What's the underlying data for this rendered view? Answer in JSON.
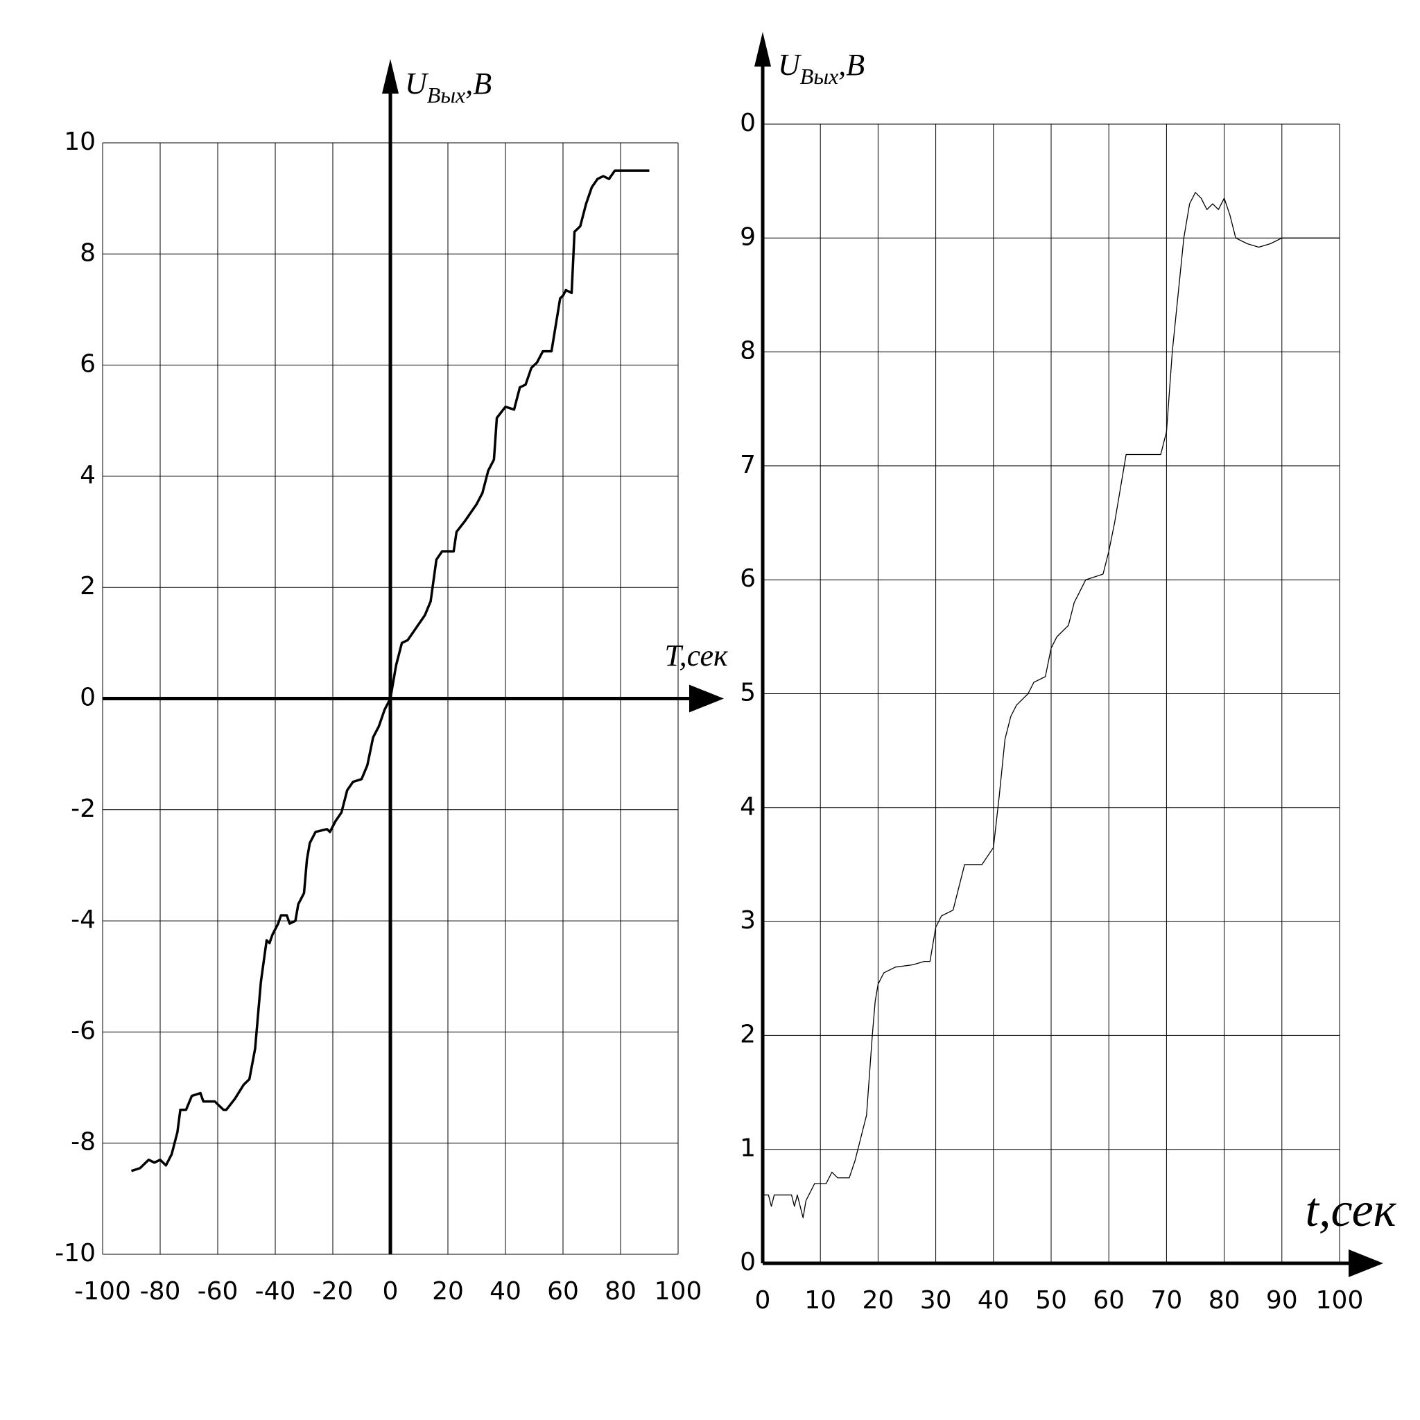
{
  "chart_data": [
    {
      "type": "line",
      "xlabel": "T,сек",
      "ylabel": [
        "U",
        "Вых",
        ",В"
      ],
      "xlim": [
        -100,
        100
      ],
      "ylim": [
        -10,
        10
      ],
      "xticks": [
        -100,
        -80,
        -60,
        -40,
        -20,
        0,
        20,
        40,
        60,
        80,
        100
      ],
      "yticks": [
        -10,
        -8,
        -6,
        -4,
        -2,
        0,
        2,
        4,
        6,
        8,
        10
      ],
      "grid": true,
      "series": [
        {
          "color": "#000000",
          "x": [
            -90,
            -87,
            -84,
            -82,
            -80,
            -78,
            -76,
            -74,
            -73,
            -71,
            -69,
            -66,
            -65,
            -61,
            -58,
            -57,
            -54,
            -51,
            -49,
            -47,
            -45,
            -43,
            -42,
            -41,
            -39,
            -38,
            -36,
            -35,
            -33,
            -32,
            -30,
            -29,
            -28,
            -26,
            -22,
            -21,
            -19,
            -17,
            -15,
            -13,
            -10,
            -8,
            -6,
            -4,
            -2,
            0,
            2,
            4,
            6,
            8,
            12,
            14,
            16,
            18,
            22,
            23,
            26,
            30,
            32,
            34,
            36,
            37,
            40,
            43,
            45,
            47,
            49,
            51,
            53,
            56,
            59,
            60,
            61,
            63,
            64,
            66,
            68,
            70,
            72,
            74,
            76,
            78,
            82,
            90
          ],
          "values": [
            -8.5,
            -8.45,
            -8.3,
            -8.35,
            -8.3,
            -8.4,
            -8.2,
            -7.8,
            -7.4,
            -7.4,
            -7.15,
            -7.1,
            -7.25,
            -7.25,
            -7.4,
            -7.4,
            -7.2,
            -6.95,
            -6.85,
            -6.3,
            -5.1,
            -4.35,
            -4.4,
            -4.25,
            -4.05,
            -3.9,
            -3.9,
            -4.05,
            -4.0,
            -3.7,
            -3.5,
            -2.9,
            -2.6,
            -2.4,
            -2.35,
            -2.4,
            -2.2,
            -2.05,
            -1.65,
            -1.5,
            -1.45,
            -1.2,
            -0.7,
            -0.5,
            -0.2,
            0,
            0.6,
            1.0,
            1.05,
            1.2,
            1.5,
            1.75,
            2.5,
            2.65,
            2.65,
            3.0,
            3.2,
            3.5,
            3.7,
            4.1,
            4.3,
            5.05,
            5.25,
            5.2,
            5.6,
            5.65,
            5.95,
            6.05,
            6.25,
            6.25,
            7.2,
            7.25,
            7.35,
            7.3,
            8.4,
            8.5,
            8.9,
            9.2,
            9.35,
            9.4,
            9.35,
            9.5,
            9.5,
            9.5
          ]
        }
      ]
    },
    {
      "type": "line",
      "xlabel": "t,сек",
      "ylabel": [
        "U",
        "Вых",
        ",В"
      ],
      "xlim": [
        0,
        100
      ],
      "ylim": [
        0,
        10
      ],
      "xticks": [
        0,
        10,
        20,
        30,
        40,
        50,
        60,
        70,
        80,
        90,
        100
      ],
      "yticks": [
        0,
        1,
        2,
        3,
        4,
        5,
        6,
        7,
        8,
        9,
        {
          "value": 10,
          "label": "0"
        }
      ],
      "grid": true,
      "series": [
        {
          "color": "#000000",
          "x": [
            0,
            1,
            1.5,
            2,
            5,
            5.5,
            6,
            7,
            7.5,
            8,
            9,
            11,
            12,
            13,
            15,
            16,
            17,
            18,
            19,
            19.5,
            20,
            21,
            23,
            26,
            28,
            29,
            30,
            31,
            33,
            34,
            35,
            38,
            40,
            41,
            42,
            43,
            44,
            46,
            47,
            49,
            50,
            51,
            53,
            54,
            56,
            59,
            60,
            61,
            62,
            63,
            65,
            67,
            69,
            70,
            71,
            72,
            73,
            74,
            75,
            76,
            77,
            78,
            79,
            80,
            81,
            82,
            84,
            86,
            88,
            90,
            95,
            100
          ],
          "values": [
            0.6,
            0.6,
            0.5,
            0.6,
            0.6,
            0.5,
            0.6,
            0.4,
            0.55,
            0.6,
            0.7,
            0.7,
            0.8,
            0.75,
            0.75,
            0.9,
            1.1,
            1.3,
            2.0,
            2.3,
            2.45,
            2.55,
            2.6,
            2.62,
            2.65,
            2.65,
            2.95,
            3.05,
            3.1,
            3.3,
            3.5,
            3.5,
            3.65,
            4.1,
            4.6,
            4.8,
            4.9,
            5.0,
            5.1,
            5.15,
            5.4,
            5.5,
            5.6,
            5.8,
            6.0,
            6.05,
            6.25,
            6.5,
            6.8,
            7.1,
            7.1,
            7.1,
            7.1,
            7.3,
            8.0,
            8.5,
            9.0,
            9.3,
            9.4,
            9.35,
            9.25,
            9.3,
            9.25,
            9.35,
            9.2,
            9.0,
            8.95,
            8.92,
            8.95,
            9.0,
            9.0,
            9.0
          ]
        }
      ]
    }
  ]
}
